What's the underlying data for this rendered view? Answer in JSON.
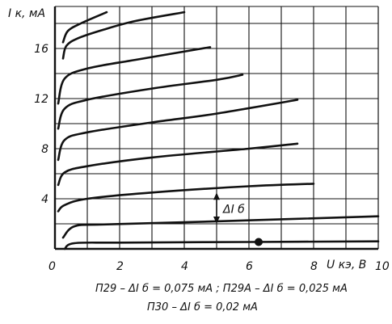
{
  "chart_data": {
    "type": "line",
    "ylabel": "I к, мА",
    "xlabel": "U кэ, В",
    "xlim": [
      0,
      10
    ],
    "ylim": [
      0,
      18.5
    ],
    "x_ticks": [
      {
        "value": 0,
        "label": "0"
      },
      {
        "value": 2,
        "label": "2"
      },
      {
        "value": 4,
        "label": "4"
      },
      {
        "value": 6,
        "label": "6"
      },
      {
        "value": 8,
        "label": "8"
      },
      {
        "value": 10,
        "label": "10"
      }
    ],
    "y_ticks": [
      {
        "value": 4,
        "label": "4"
      },
      {
        "value": 8,
        "label": "8"
      },
      {
        "value": 12,
        "label": "12"
      },
      {
        "value": 16,
        "label": "16"
      }
    ],
    "grid": true,
    "series": [
      {
        "values": [
          [
            0.3,
            0.0
          ],
          [
            0.6,
            0.45
          ],
          [
            2,
            0.5
          ],
          [
            6,
            0.55
          ],
          [
            10,
            0.6
          ]
        ]
      },
      {
        "values": [
          [
            0.25,
            0.9
          ],
          [
            0.6,
            1.8
          ],
          [
            1.5,
            1.95
          ],
          [
            5,
            2.2
          ],
          [
            10,
            2.6
          ]
        ]
      },
      {
        "values": [
          [
            0.1,
            3.0
          ],
          [
            0.3,
            3.5
          ],
          [
            1,
            4.0
          ],
          [
            3,
            4.5
          ],
          [
            6,
            5.0
          ],
          [
            8,
            5.2
          ]
        ]
      },
      {
        "values": [
          [
            0.1,
            5.1
          ],
          [
            0.3,
            6.1
          ],
          [
            1,
            6.6
          ],
          [
            3,
            7.3
          ],
          [
            6,
            8.0
          ],
          [
            7.5,
            8.4
          ]
        ]
      },
      {
        "values": [
          [
            0.1,
            7.1
          ],
          [
            0.3,
            8.7
          ],
          [
            1,
            9.3
          ],
          [
            3,
            10.1
          ],
          [
            5,
            10.8
          ],
          [
            7.5,
            11.9
          ]
        ]
      },
      {
        "values": [
          [
            0.1,
            9.6
          ],
          [
            0.3,
            11.2
          ],
          [
            1,
            11.9
          ],
          [
            3,
            12.8
          ],
          [
            5,
            13.5
          ],
          [
            5.8,
            13.9
          ]
        ]
      },
      {
        "values": [
          [
            0.1,
            11.6
          ],
          [
            0.3,
            13.6
          ],
          [
            1,
            14.4
          ],
          [
            2.5,
            15.1
          ],
          [
            4.8,
            16.1
          ]
        ]
      },
      {
        "values": [
          [
            0.25,
            15.2
          ],
          [
            0.35,
            16.2
          ],
          [
            0.7,
            16.8
          ],
          [
            1.5,
            17.5
          ],
          [
            2.5,
            18.2
          ],
          [
            4,
            18.9
          ]
        ]
      },
      {
        "values": [
          [
            0.25,
            16.5
          ],
          [
            0.4,
            17.4
          ],
          [
            0.8,
            18.0
          ],
          [
            1.6,
            18.9
          ]
        ]
      }
    ],
    "annotations": {
      "delta_label": "ΔI б",
      "delta_x": 5.0,
      "delta_y_from": 2.0,
      "delta_y_to": 4.5,
      "dot": {
        "x": 6.3,
        "y": 0.55
      }
    },
    "notes": [
      "П29 – ΔI б = 0,075 мА ; П29А – ΔI б = 0,025 мА",
      "П30 – ΔI б = 0,02 мА"
    ]
  }
}
